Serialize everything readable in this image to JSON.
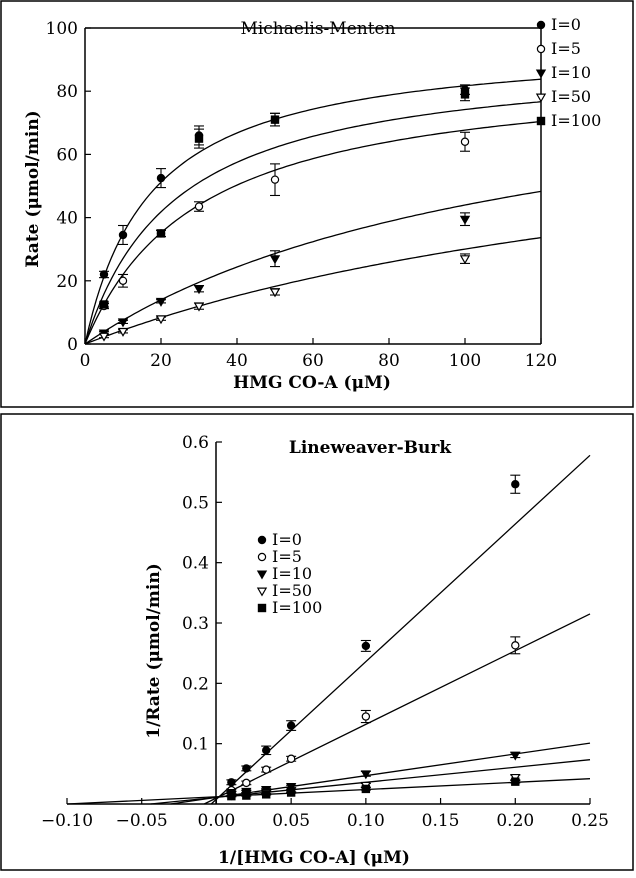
{
  "chart_data": [
    {
      "type": "scatter",
      "title": "Michaelis-Menten",
      "xlabel": "HMG CO-A (μM)",
      "ylabel": "Rate (μmol/min)",
      "xlim": [
        0,
        120
      ],
      "ylim": [
        0,
        100
      ],
      "xticks": [
        0,
        20,
        40,
        60,
        80,
        100,
        120
      ],
      "yticks": [
        0,
        20,
        40,
        60,
        80,
        100
      ],
      "tick_labels_x": [
        "0",
        "20",
        "40",
        "60",
        "80",
        "100",
        "120"
      ],
      "tick_labels_y": [
        "0",
        "20",
        "40",
        "60",
        "80",
        "100"
      ],
      "legend_position": "top-right",
      "grid": false,
      "series": [
        {
          "name": "I=0",
          "marker": "filled-circle",
          "points": [
            [
              5,
              22
            ],
            [
              10,
              34.5
            ],
            [
              20,
              52.5
            ],
            [
              30,
              66
            ],
            [
              50,
              71
            ],
            [
              100,
              80.5
            ]
          ],
          "errors": [
            1,
            3,
            3,
            3,
            2,
            1.5
          ],
          "fit": {
            "vmax": 96,
            "km": 17.5
          }
        },
        {
          "name": "I=5",
          "marker": "open-circle",
          "points": [
            [
              5,
              12
            ],
            [
              10,
              20
            ],
            [
              20,
              35
            ],
            [
              30,
              43.5
            ],
            [
              50,
              52
            ],
            [
              100,
              64
            ]
          ],
          "errors": [
            0.8,
            2,
            1,
            1.5,
            5,
            3
          ],
          "fit": {
            "vmax": 92,
            "km": 24
          }
        },
        {
          "name": "I=10",
          "marker": "filled-triangle-down",
          "points": [
            [
              5,
              3.5
            ],
            [
              10,
              7
            ],
            [
              20,
              13.5
            ],
            [
              30,
              17.5
            ],
            [
              50,
              27
            ],
            [
              100,
              39.5
            ]
          ],
          "errors": [
            0.5,
            0.5,
            0.5,
            1,
            2.5,
            2
          ],
          "fit": {
            "vmax": 88,
            "km": 30
          }
        },
        {
          "name": "I=50",
          "marker": "open-triangle-down",
          "points": [
            [
              5,
              2.5
            ],
            [
              10,
              4
            ],
            [
              20,
              8
            ],
            [
              30,
              12
            ],
            [
              50,
              16.5
            ],
            [
              100,
              27
            ]
          ],
          "errors": [
            0.5,
            0.5,
            0.5,
            1,
            1,
            1.5
          ],
          "fit": {
            "vmax": 95,
            "km": 116
          }
        },
        {
          "name": "I=100",
          "marker": "filled-square",
          "points": [
            [
              5,
              12.5
            ],
            [
              20,
              35
            ],
            [
              30,
              65
            ],
            [
              50,
              71
            ],
            [
              100,
              79
            ]
          ],
          "errors": [
            0.8,
            1,
            3,
            2,
            2
          ],
          "fit": {
            "vmax": 85,
            "km": 183
          }
        }
      ]
    },
    {
      "type": "scatter",
      "title": "Lineweaver-Burk",
      "xlabel": "1/[HMG CO-A] (μM)",
      "ylabel": "1/Rate (μmol/min)",
      "xlim": [
        -0.1,
        0.25
      ],
      "ylim": [
        0,
        0.6
      ],
      "xticks": [
        -0.1,
        -0.05,
        0,
        0.05,
        0.1,
        0.15,
        0.2,
        0.25
      ],
      "yticks": [
        0.1,
        0.2,
        0.3,
        0.4,
        0.5,
        0.6
      ],
      "tick_labels_x": [
        "−0.10",
        "−0.05",
        "0.00",
        "0.05",
        "0.10",
        "0.15",
        "0.20",
        "0.25"
      ],
      "tick_labels_y": [
        "0.1",
        "0.2",
        "0.3",
        "0.4",
        "0.5",
        "0.6"
      ],
      "legend_position": "upper-left",
      "grid": false,
      "series": [
        {
          "name": "I=0",
          "marker": "filled-circle",
          "points": [
            [
              0.01,
              0.036
            ],
            [
              0.02,
              0.059
            ],
            [
              0.0333,
              0.089
            ],
            [
              0.05,
              0.13
            ],
            [
              0.1,
              0.262
            ],
            [
              0.2,
              0.53
            ]
          ],
          "errors": [
            0.004,
            0.004,
            0.007,
            0.008,
            0.009,
            0.015
          ],
          "line": {
            "slope": 2.28,
            "intercept": 0.008
          }
        },
        {
          "name": "I=5",
          "marker": "open-circle",
          "points": [
            [
              0.01,
              0.023
            ],
            [
              0.02,
              0.035
            ],
            [
              0.0333,
              0.057
            ],
            [
              0.05,
              0.075
            ],
            [
              0.1,
              0.145
            ],
            [
              0.2,
              0.263
            ]
          ],
          "errors": [
            0.002,
            0.003,
            0.004,
            0.004,
            0.01,
            0.014
          ],
          "line": {
            "slope": 1.22,
            "intercept": 0.01
          }
        },
        {
          "name": "I=10",
          "marker": "filled-triangle-down",
          "points": [
            [
              0.01,
              0.019
            ],
            [
              0.02,
              0.021
            ],
            [
              0.0333,
              0.024
            ],
            [
              0.05,
              0.029
            ],
            [
              0.1,
              0.05
            ],
            [
              0.2,
              0.081
            ]
          ],
          "errors": [
            0.002,
            0.002,
            0.002,
            0.002,
            0.004,
            0.004
          ],
          "line": {
            "slope": 0.36,
            "intercept": 0.011
          }
        },
        {
          "name": "I=50",
          "marker": "open-triangle-down",
          "points": [
            [
              0.01,
              0.015
            ],
            [
              0.02,
              0.017
            ],
            [
              0.0333,
              0.019
            ],
            [
              0.05,
              0.022
            ],
            [
              0.1,
              0.031
            ],
            [
              0.2,
              0.044
            ]
          ],
          "errors": [
            0.002,
            0.002,
            0.002,
            0.002,
            0.003,
            0.004
          ],
          "line": {
            "slope": 0.25,
            "intercept": 0.011
          }
        },
        {
          "name": "I=100",
          "marker": "filled-square",
          "points": [
            [
              0.01,
              0.013
            ],
            [
              0.02,
              0.014
            ],
            [
              0.0333,
              0.016
            ],
            [
              0.05,
              0.019
            ],
            [
              0.1,
              0.025
            ],
            [
              0.2,
              0.037
            ]
          ],
          "errors": [
            0.001,
            0.001,
            0.001,
            0.001,
            0.002,
            0.002
          ],
          "line": {
            "slope": 0.12,
            "intercept": 0.012
          }
        }
      ]
    }
  ]
}
